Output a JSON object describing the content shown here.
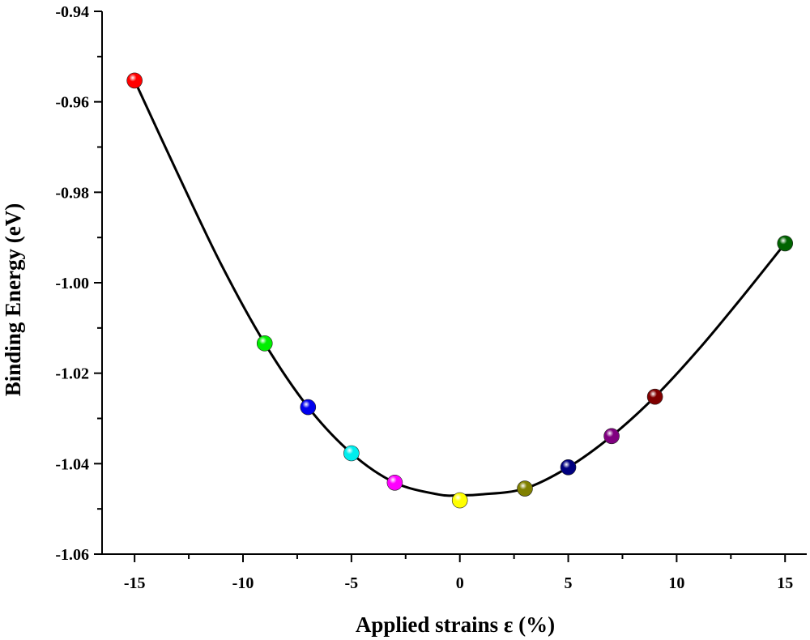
{
  "chart_data": {
    "type": "scatter",
    "title": "",
    "xlabel": "Applied strains ε (%)",
    "ylabel": "Binding Energy (eV)",
    "xlim": [
      -16.5,
      16
    ],
    "ylim": [
      -1.06,
      -0.94
    ],
    "x_ticks": [
      -15,
      -10,
      -5,
      0,
      5,
      10,
      15
    ],
    "x_tick_labels": [
      "-15",
      "-10",
      "-5",
      "0",
      "5",
      "10",
      "15"
    ],
    "y_ticks": [
      -1.06,
      -1.04,
      -1.02,
      -1.0,
      -0.98,
      -0.96,
      -0.94
    ],
    "y_tick_labels": [
      "-1.06",
      "-1.04",
      "-1.02",
      "-1.00",
      "-0.98",
      "-0.96",
      "-0.94"
    ],
    "grid": false,
    "legend": "none",
    "series": [
      {
        "x": [
          -15,
          -9,
          -7,
          -5,
          -3,
          0,
          3,
          5,
          7,
          9,
          15
        ],
        "y": [
          -0.9553,
          -1.0134,
          -1.0275,
          -1.0377,
          -1.0442,
          -1.0481,
          -1.0455,
          -1.0408,
          -1.0339,
          -1.0252,
          -0.9913
        ],
        "colors": [
          "#ff0000",
          "#00ee00",
          "#0000ee",
          "#00eeee",
          "#ff00ff",
          "#ffff00",
          "#808000",
          "#000080",
          "#800080",
          "#800000",
          "#006400"
        ]
      }
    ],
    "fit_curve": {
      "x": [
        -15,
        -13,
        -11,
        -9,
        -7,
        -5,
        -3,
        -1,
        0,
        1,
        3,
        5,
        7,
        9,
        11,
        13,
        15
      ],
      "y": [
        -0.9553,
        -0.976,
        -0.996,
        -1.0134,
        -1.0275,
        -1.0377,
        -1.0442,
        -1.0468,
        -1.047,
        -1.0468,
        -1.0455,
        -1.0408,
        -1.0339,
        -1.0252,
        -1.0148,
        -1.0033,
        -0.9913
      ]
    }
  }
}
